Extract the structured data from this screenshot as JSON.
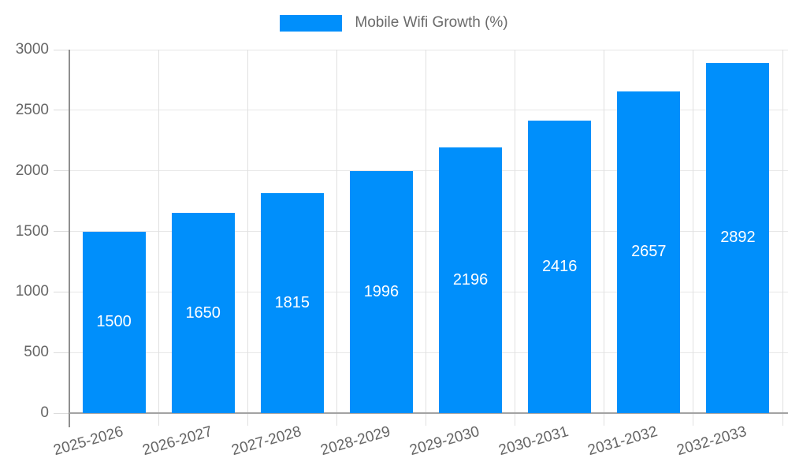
{
  "legend": {
    "label": "Mobile Wifi Growth (%)",
    "swatch_color": "#008FFB"
  },
  "chart_data": {
    "type": "bar",
    "title": "Mobile Wifi Growth (%)",
    "series_name": "Mobile Wifi Growth (%)",
    "categories": [
      "2025-2026",
      "2026-2027",
      "2027-2028",
      "2028-2029",
      "2029-2030",
      "2030-2031",
      "2031-2032",
      "2032-2033"
    ],
    "values": [
      1500,
      1650,
      1815,
      1996,
      2196,
      2416,
      2657,
      2892
    ],
    "value_labels": [
      "1500",
      "1650",
      "1815",
      "1996",
      "2196",
      "2416",
      "2657",
      "2892"
    ],
    "ylim": [
      0,
      3000
    ],
    "ytick_step": 500,
    "ytick_labels": [
      "0",
      "500",
      "1000",
      "1500",
      "2000",
      "2500",
      "3000"
    ],
    "xlabel": "",
    "ylabel": "",
    "grid": true,
    "legend_position": "top",
    "bar_color": "#008FFB",
    "value_label_color": "#ffffff",
    "axis_label_color": "#666666",
    "grid_color": "#e7e7e7",
    "axis_line_color": "#999999",
    "x_label_rotation_deg": -16
  }
}
